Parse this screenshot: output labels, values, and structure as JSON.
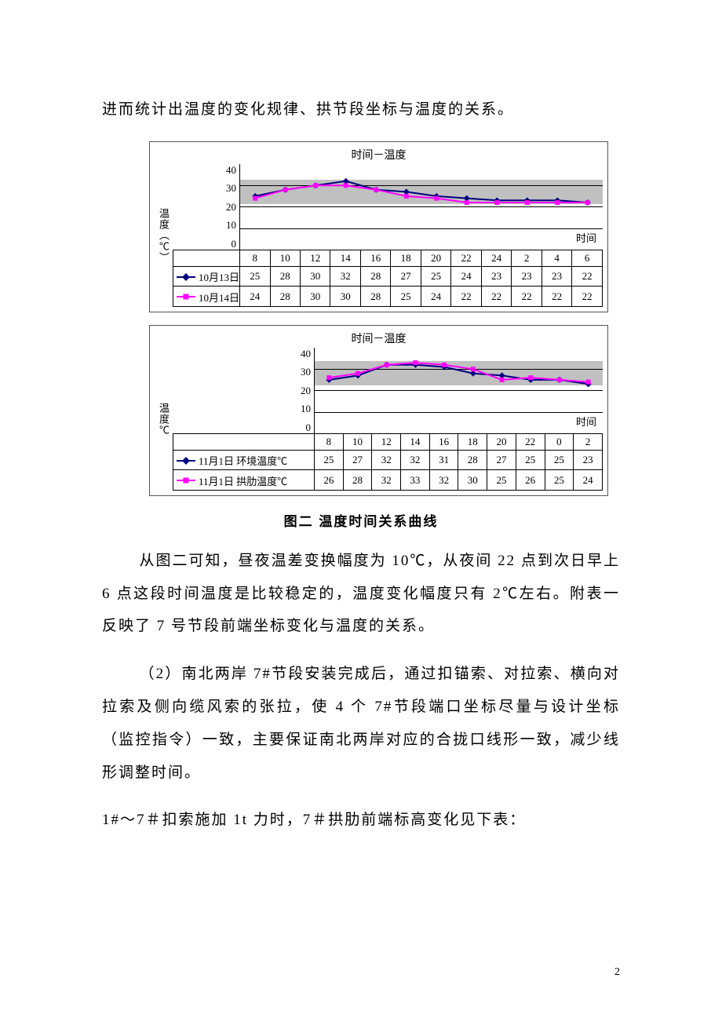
{
  "paragraphs": {
    "intro": "进而统计出温度的变化规律、拱节段坐标与温度的关系。",
    "caption": "图二 温度时间关系曲线",
    "p2": "从图二可知，昼夜温差变换幅度为 10℃，从夜间 22 点到次日早上 6 点这段时间温度是比较稳定的，温度变化幅度只有 2℃左右。附表一反映了 7 号节段前端坐标变化与温度的关系。",
    "p3": "（2）南北两岸 7#节段安装完成后，通过扣锚索、对拉索、横向对拉索及侧向缆风索的张拉，使 4 个 7#节段端口坐标尽量与设计坐标（监控指令）一致，主要保证南北两岸对应的合拢口线形一致，减少线形调整时间。",
    "p4": "1#～7＃扣索施加 1t 力时，7＃拱肋前端标高变化见下表："
  },
  "page_number": "2",
  "chart1": {
    "title": "时间－温度",
    "y_label": "温度（℃）",
    "x_inner_label": "时间",
    "y_ticks": [
      "40",
      "30",
      "20",
      "10",
      "0"
    ],
    "categories": [
      "8",
      "10",
      "12",
      "14",
      "16",
      "18",
      "20",
      "22",
      "24",
      "2",
      "4",
      "6"
    ],
    "series": [
      {
        "name": "10月13日",
        "color": "#000080",
        "marker": "diamond",
        "values": [
          25,
          28,
          30,
          32,
          28,
          27,
          25,
          24,
          23,
          23,
          23,
          22
        ]
      },
      {
        "name": "10月14日",
        "color": "#ff00ff",
        "marker": "square",
        "values": [
          24,
          28,
          30,
          30,
          28,
          25,
          24,
          22,
          22,
          22,
          22,
          22
        ]
      }
    ],
    "y_max": 40,
    "legend_col_width": 85
  },
  "chart2": {
    "title": "时间－温度",
    "y_label": "温度℃",
    "x_inner_label": "时间",
    "y_ticks": [
      "40",
      "30",
      "20",
      "10",
      "0"
    ],
    "categories": [
      "8",
      "10",
      "12",
      "14",
      "16",
      "18",
      "20",
      "22",
      "0",
      "2"
    ],
    "series": [
      {
        "name": "11月1日 环境温度℃",
        "color": "#000080",
        "marker": "diamond",
        "values": [
          25,
          27,
          32,
          32,
          31,
          28,
          27,
          25,
          25,
          23
        ]
      },
      {
        "name": "11月1日 拱肋温度℃",
        "color": "#ff00ff",
        "marker": "square",
        "values": [
          26,
          28,
          32,
          33,
          32,
          30,
          25,
          26,
          25,
          24
        ]
      }
    ],
    "y_max": 40,
    "legend_col_width": 180
  }
}
